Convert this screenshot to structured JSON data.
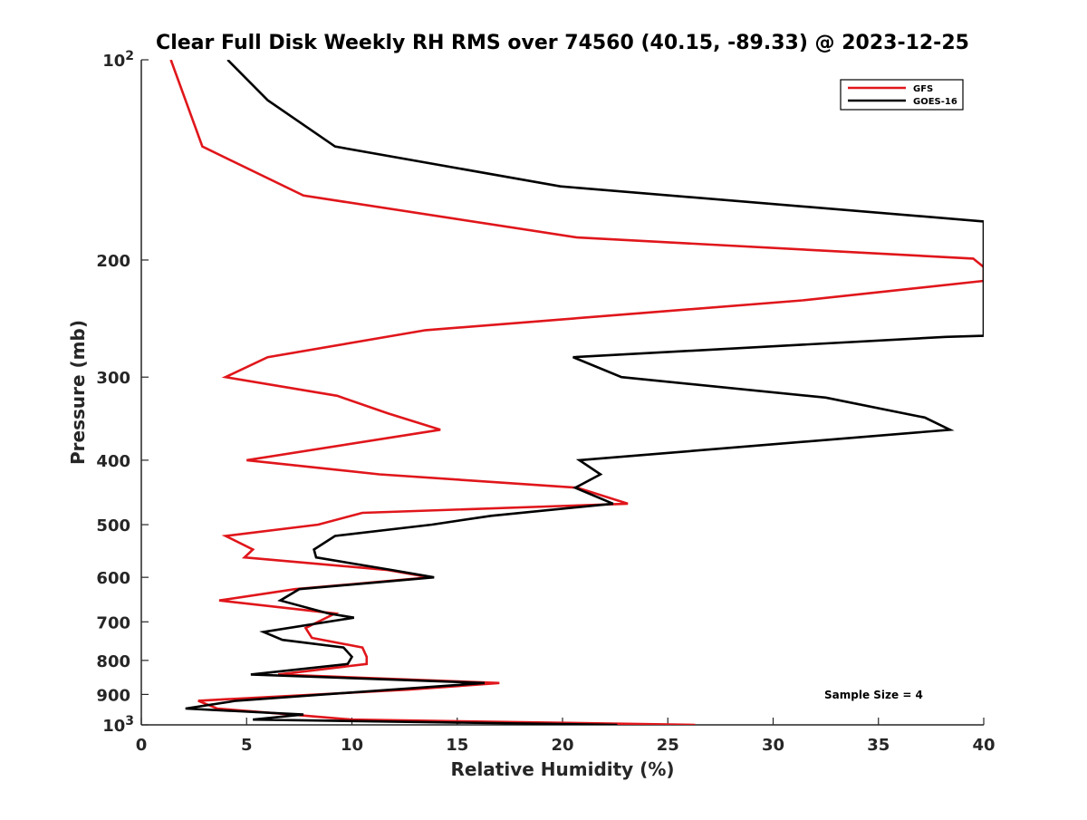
{
  "chart_data": {
    "type": "line",
    "title": "Clear Full Disk Weekly RH RMS over 74560 (40.15, -89.33) @ 2023-12-25",
    "xlabel": "Relative Humidity (%)",
    "ylabel": "Pressure (mb)",
    "xlim": [
      0,
      40
    ],
    "ylim": [
      100,
      1000
    ],
    "y_scale": "log",
    "y_reversed": true,
    "x_ticks": [
      "0",
      "5",
      "10",
      "15",
      "20",
      "25",
      "30",
      "35",
      "40"
    ],
    "y_ticks": [
      {
        "value": 100,
        "base": "10",
        "exp": "2"
      },
      {
        "value": 200,
        "label": "200"
      },
      {
        "value": 300,
        "label": "300"
      },
      {
        "value": 400,
        "label": "400"
      },
      {
        "value": 500,
        "label": "500"
      },
      {
        "value": 600,
        "label": "600"
      },
      {
        "value": 700,
        "label": "700"
      },
      {
        "value": 800,
        "label": "800"
      },
      {
        "value": 900,
        "label": "900"
      },
      {
        "value": 1000,
        "base": "10",
        "exp": "3"
      }
    ],
    "legend_position": "top-right",
    "annotation": "Sample Size = 4",
    "series": [
      {
        "name": "GFS",
        "color": "#e0161b",
        "points": [
          [
            1.4,
            100
          ],
          [
            2.1,
            115
          ],
          [
            2.9,
            135
          ],
          [
            7.7,
            160
          ],
          [
            20.7,
            185
          ],
          [
            39.5,
            199
          ],
          [
            40.0,
            205
          ],
          [
            40.0,
            215
          ],
          [
            31.4,
            230
          ],
          [
            13.5,
            255
          ],
          [
            6.0,
            280
          ],
          [
            4.0,
            300
          ],
          [
            9.3,
            320
          ],
          [
            11.7,
            340
          ],
          [
            14.2,
            360
          ],
          [
            5.0,
            400
          ],
          [
            11.3,
            420
          ],
          [
            20.7,
            440
          ],
          [
            23.1,
            465
          ],
          [
            10.5,
            480
          ],
          [
            8.4,
            500
          ],
          [
            4.0,
            520
          ],
          [
            5.3,
            545
          ],
          [
            4.9,
            560
          ],
          [
            11.7,
            585
          ],
          [
            13.7,
            600
          ],
          [
            7.3,
            625
          ],
          [
            3.7,
            650
          ],
          [
            9.2,
            680
          ],
          [
            7.8,
            715
          ],
          [
            8.1,
            740
          ],
          [
            10.5,
            765
          ],
          [
            10.7,
            790
          ],
          [
            10.7,
            810
          ],
          [
            6.5,
            840
          ],
          [
            17.0,
            865
          ],
          [
            12.7,
            885
          ],
          [
            2.7,
            920
          ],
          [
            3.6,
            945
          ],
          [
            7.1,
            965
          ],
          [
            10.0,
            982
          ],
          [
            26.3,
            1000
          ]
        ]
      },
      {
        "name": "GOES-16",
        "color": "#000000",
        "points": [
          [
            4.1,
            100
          ],
          [
            6.0,
            115
          ],
          [
            9.2,
            135
          ],
          [
            19.9,
            155
          ],
          [
            40.0,
            175
          ],
          [
            40.0,
            260
          ],
          [
            38.2,
            261
          ],
          [
            20.5,
            280
          ],
          [
            22.8,
            300
          ],
          [
            32.5,
            322
          ],
          [
            37.2,
            345
          ],
          [
            38.4,
            360
          ],
          [
            20.8,
            400
          ],
          [
            21.8,
            420
          ],
          [
            20.6,
            440
          ],
          [
            22.4,
            465
          ],
          [
            16.6,
            485
          ],
          [
            13.8,
            500
          ],
          [
            9.2,
            520
          ],
          [
            8.2,
            545
          ],
          [
            8.3,
            560
          ],
          [
            11.9,
            585
          ],
          [
            13.9,
            600
          ],
          [
            7.5,
            625
          ],
          [
            6.6,
            650
          ],
          [
            8.9,
            680
          ],
          [
            10.1,
            690
          ],
          [
            5.8,
            725
          ],
          [
            6.7,
            745
          ],
          [
            9.6,
            765
          ],
          [
            10.0,
            790
          ],
          [
            9.8,
            810
          ],
          [
            5.2,
            840
          ],
          [
            16.3,
            865
          ],
          [
            4.5,
            920
          ],
          [
            2.1,
            945
          ],
          [
            7.7,
            965
          ],
          [
            5.3,
            982
          ],
          [
            22.6,
            1000
          ]
        ]
      }
    ]
  }
}
